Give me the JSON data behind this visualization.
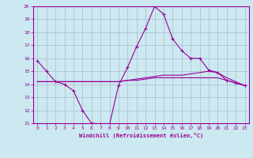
{
  "title": "",
  "xlabel": "Windchill (Refroidissement éolien,°C)",
  "ylabel": "",
  "bg_color": "#cce8f0",
  "line_color": "#990099",
  "grid_color": "#aabbcc",
  "xlim": [
    -0.5,
    23.5
  ],
  "ylim": [
    11,
    20
  ],
  "xticks": [
    0,
    1,
    2,
    3,
    4,
    5,
    6,
    7,
    8,
    9,
    10,
    11,
    12,
    13,
    14,
    15,
    16,
    17,
    18,
    19,
    20,
    21,
    22,
    23
  ],
  "yticks": [
    11,
    12,
    13,
    14,
    15,
    16,
    17,
    18,
    19,
    20
  ],
  "line1_x": [
    0,
    1,
    2,
    3,
    4,
    5,
    6,
    7,
    8,
    9,
    10,
    11,
    12,
    13,
    14,
    15,
    16,
    17,
    18,
    19,
    20,
    21,
    22,
    23
  ],
  "line1_y": [
    15.8,
    15.0,
    14.2,
    14.0,
    13.5,
    12.0,
    11.0,
    10.95,
    10.9,
    13.9,
    15.3,
    16.9,
    18.3,
    20.0,
    19.4,
    17.5,
    16.6,
    16.0,
    16.0,
    15.1,
    14.9,
    14.3,
    14.1,
    13.9
  ],
  "line2_x": [
    0,
    1,
    2,
    3,
    4,
    5,
    6,
    7,
    8,
    9,
    10,
    11,
    12,
    13,
    14,
    15,
    16,
    17,
    18,
    19,
    20,
    21,
    22,
    23
  ],
  "line2_y": [
    14.2,
    14.2,
    14.2,
    14.2,
    14.2,
    14.2,
    14.2,
    14.2,
    14.2,
    14.2,
    14.3,
    14.3,
    14.4,
    14.5,
    14.5,
    14.5,
    14.5,
    14.5,
    14.5,
    14.5,
    14.5,
    14.3,
    14.1,
    13.9
  ],
  "line3_x": [
    0,
    1,
    2,
    3,
    4,
    5,
    6,
    7,
    8,
    9,
    10,
    11,
    12,
    13,
    14,
    15,
    16,
    17,
    18,
    19,
    20,
    21,
    22,
    23
  ],
  "line3_y": [
    14.2,
    14.2,
    14.2,
    14.2,
    14.2,
    14.2,
    14.2,
    14.2,
    14.2,
    14.2,
    14.3,
    14.4,
    14.5,
    14.6,
    14.7,
    14.7,
    14.7,
    14.8,
    14.9,
    15.0,
    14.9,
    14.5,
    14.2,
    13.9
  ]
}
